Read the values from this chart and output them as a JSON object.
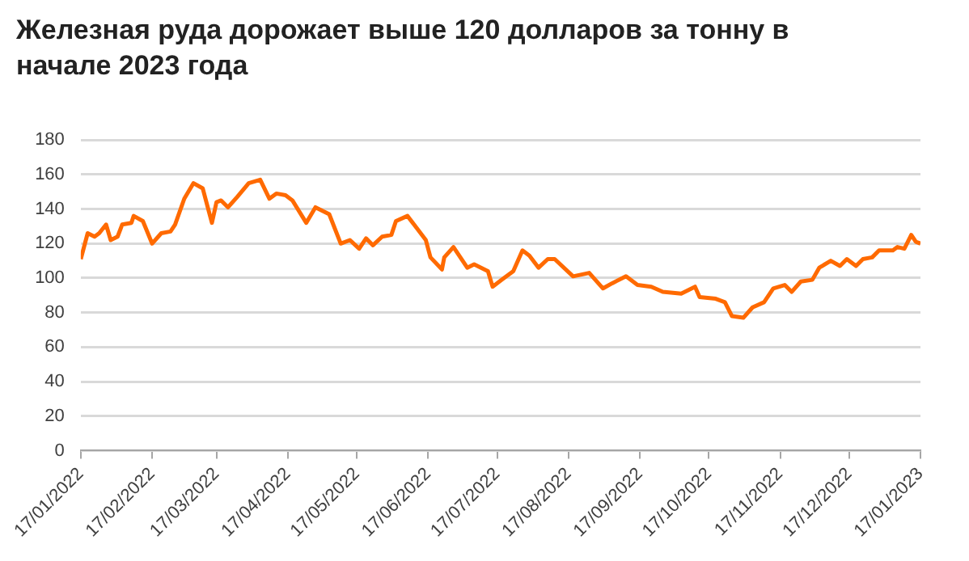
{
  "chart_data": {
    "type": "line",
    "title": "Железная руда дорожает выше 120 долларов за тонну в начале 2023 года",
    "x": [
      "2022-01-17",
      "2022-01-20",
      "2022-01-23",
      "2022-01-25",
      "2022-01-28",
      "2022-01-30",
      "2022-02-02",
      "2022-02-04",
      "2022-02-08",
      "2022-02-09",
      "2022-02-13",
      "2022-02-17",
      "2022-02-21",
      "2022-02-25",
      "2022-02-27",
      "2022-03-03",
      "2022-03-07",
      "2022-03-11",
      "2022-03-15",
      "2022-03-17",
      "2022-03-19",
      "2022-03-22",
      "2022-03-26",
      "2022-03-31",
      "2022-04-05",
      "2022-04-09",
      "2022-04-12",
      "2022-04-16",
      "2022-04-19",
      "2022-04-25",
      "2022-04-29",
      "2022-05-05",
      "2022-05-10",
      "2022-05-14",
      "2022-05-18",
      "2022-05-21",
      "2022-05-24",
      "2022-05-28",
      "2022-06-01",
      "2022-06-03",
      "2022-06-08",
      "2022-06-12",
      "2022-06-16",
      "2022-06-18",
      "2022-06-23",
      "2022-06-24",
      "2022-06-28",
      "2022-07-04",
      "2022-07-07",
      "2022-07-13",
      "2022-07-15",
      "2022-07-19",
      "2022-07-24",
      "2022-07-28",
      "2022-07-31",
      "2022-08-04",
      "2022-08-08",
      "2022-08-11",
      "2022-08-19",
      "2022-08-26",
      "2022-09-01",
      "2022-09-05",
      "2022-09-11",
      "2022-09-16",
      "2022-09-22",
      "2022-09-27",
      "2022-10-05",
      "2022-10-11",
      "2022-10-13",
      "2022-10-20",
      "2022-10-24",
      "2022-10-27",
      "2022-11-01",
      "2022-11-05",
      "2022-11-10",
      "2022-11-14",
      "2022-11-19",
      "2022-11-22",
      "2022-11-26",
      "2022-12-01",
      "2022-12-04",
      "2022-12-09",
      "2022-12-13",
      "2022-12-16",
      "2022-12-20",
      "2022-12-23",
      "2022-12-27",
      "2022-12-30",
      "2023-01-05",
      "2023-01-07",
      "2023-01-10",
      "2023-01-13",
      "2023-01-15",
      "2023-01-17"
    ],
    "series": [
      {
        "color": "#ff6a00",
        "values": [
          111,
          126,
          124,
          126,
          131,
          122,
          124,
          131,
          132,
          136,
          133,
          120,
          126,
          127,
          131,
          146,
          155,
          152,
          132,
          144,
          145,
          141,
          147,
          155,
          157,
          146,
          149,
          148,
          145,
          132,
          141,
          137,
          120,
          122,
          117,
          123,
          119,
          124,
          125,
          133,
          136,
          129,
          122,
          112,
          105,
          112,
          118,
          106,
          108,
          104,
          95,
          99,
          104,
          116,
          113,
          106,
          111,
          111,
          101,
          103,
          94,
          97,
          101,
          96,
          95,
          92,
          91,
          95,
          89,
          88,
          86,
          78,
          77,
          83,
          86,
          94,
          96,
          92,
          98,
          99,
          106,
          110,
          107,
          111,
          107,
          111,
          112,
          116,
          116,
          118,
          117,
          125,
          121,
          120
        ]
      }
    ],
    "xlim": [
      "2022-01-17",
      "2023-01-17"
    ],
    "xticks": [
      {
        "value": "2022-01-17",
        "label": "17/01/2022"
      },
      {
        "value": "2022-02-17",
        "label": "17/02/2022"
      },
      {
        "value": "2022-03-17",
        "label": "17/03/2022"
      },
      {
        "value": "2022-04-17",
        "label": "17/04/2022"
      },
      {
        "value": "2022-05-17",
        "label": "17/05/2022"
      },
      {
        "value": "2022-06-17",
        "label": "17/06/2022"
      },
      {
        "value": "2022-07-17",
        "label": "17/07/2022"
      },
      {
        "value": "2022-08-17",
        "label": "17/08/2022"
      },
      {
        "value": "2022-09-17",
        "label": "17/09/2022"
      },
      {
        "value": "2022-10-17",
        "label": "17/10/2022"
      },
      {
        "value": "2022-11-17",
        "label": "17/11/2022"
      },
      {
        "value": "2022-12-17",
        "label": "17/12/2022"
      },
      {
        "value": "2023-01-17",
        "label": "17/01/2023"
      }
    ],
    "ylim": [
      0,
      180
    ],
    "yticks": [
      0,
      20,
      40,
      60,
      80,
      100,
      120,
      140,
      160,
      180
    ],
    "grid": "y",
    "legend": false,
    "marker": "none",
    "line_style": "solid"
  }
}
